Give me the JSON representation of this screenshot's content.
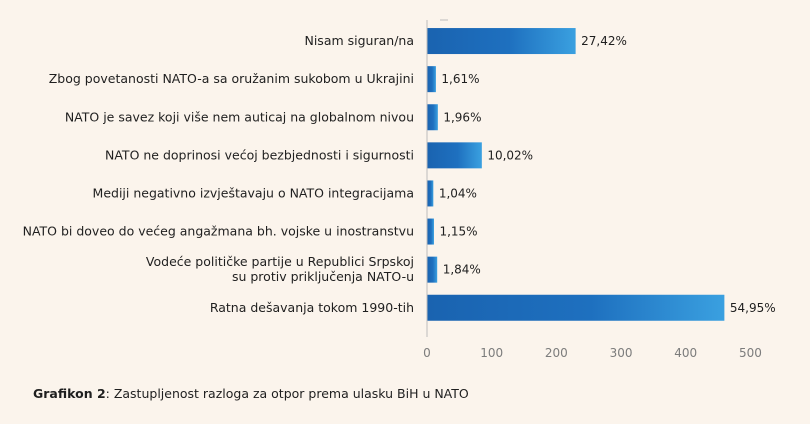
{
  "chart_data": {
    "type": "bar",
    "orientation": "horizontal",
    "categories": [
      "Nisam siguran/na",
      "Zbog povetanosti NATO-a sa oružanim sukobom u Ukrajini",
      "NATO je savez koji više nem auticaj na globalnom nivou",
      "NATO ne doprinosi većoj bezbjednosti i sigurnosti",
      "Mediji negativno izvještavaju o NATO integracijama",
      "NATO bi doveo do većeg angažmana bh. vojske u inostranstvu",
      "Vodeće političke partije u Republici Srpskoj su protiv priključenja NATO-u",
      "Ratna dešavanja tokom 1990-tih"
    ],
    "category_lines": [
      [
        "Nisam siguran/na"
      ],
      [
        "Zbog povetanosti NATO-a sa oružanim sukobom u Ukrajini"
      ],
      [
        "NATO je savez koji više nem auticaj na globalnom nivou"
      ],
      [
        "NATO ne doprinosi većoj bezbjednosti i sigurnosti"
      ],
      [
        "Mediji negativno izvještavaju o NATO integracijama"
      ],
      [
        "NATO bi doveo do većeg angažmana bh. vojske u inostranstvu"
      ],
      [
        "Vodeće političke partije u Republici Srpskoj",
        "su protiv  priključenja NATO-u"
      ],
      [
        "Ratna dešavanja tokom 1990-tih"
      ]
    ],
    "values": [
      229,
      13,
      16,
      84,
      9,
      10,
      15,
      459
    ],
    "value_labels": [
      "27,42%",
      "1,61%",
      "1,96%",
      "10,02%",
      "1,04%",
      "1,15%",
      "1,84%",
      "54,95%"
    ],
    "xlim": [
      0,
      500
    ],
    "xticks": [
      "0",
      "100",
      "200",
      "300",
      "400",
      "500"
    ],
    "grid": false,
    "bar_color_start": "#1a63b0",
    "bar_color_end": "#3aa0e0"
  },
  "caption": {
    "bold": "Grafikon 2",
    "rest": ": Zastupljenost razloga za otpor prema ulasku BiH u NATO"
  }
}
